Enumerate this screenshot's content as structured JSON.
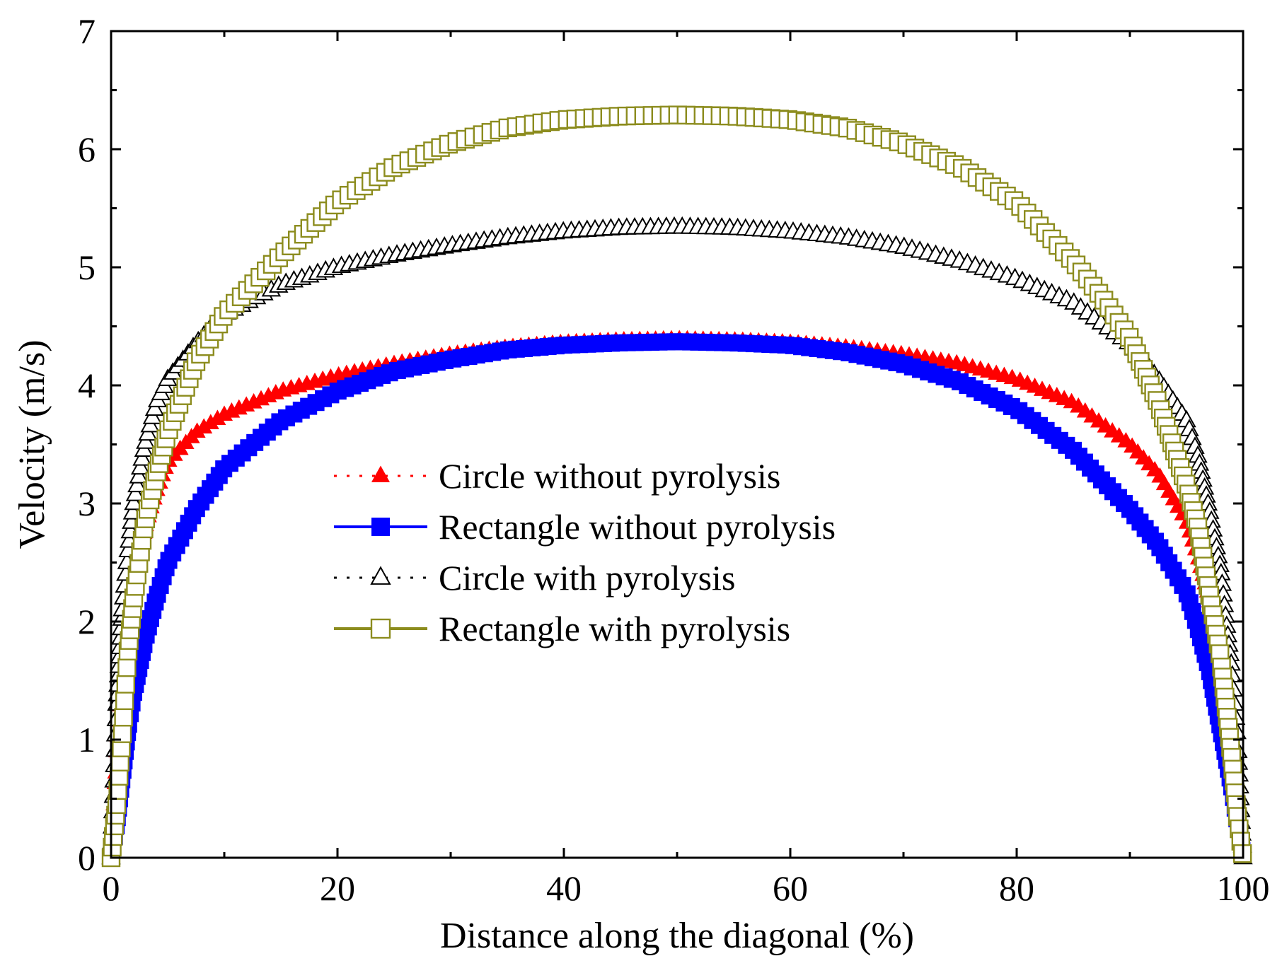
{
  "chart_data": {
    "type": "line",
    "title": "",
    "xlabel": "Distance along the diagonal (%)",
    "ylabel": "Velocity (m/s)",
    "xlim": [
      0,
      100
    ],
    "ylim": [
      0,
      7
    ],
    "xticks": [
      0,
      20,
      40,
      60,
      80,
      100
    ],
    "yticks": [
      0,
      1,
      2,
      3,
      4,
      5,
      6,
      7
    ],
    "legend_position": "center",
    "grid": false,
    "colors": {
      "red": "#ff0000",
      "blue": "#0000ff",
      "black": "#000000",
      "olive": "#8c8c1e"
    },
    "series": [
      {
        "name": "Circle without pyrolysis",
        "line": "dotted",
        "marker": "triangle-filled",
        "color": "#ff0000",
        "x": [
          0,
          0.5,
          1,
          2,
          3,
          4,
          5,
          7.5,
          10,
          15,
          20,
          25,
          30,
          35,
          40,
          45,
          50,
          55,
          60,
          65,
          70,
          75,
          80,
          85,
          90,
          92.5,
          95,
          96,
          97,
          98,
          99,
          99.5,
          100
        ],
        "values": [
          0,
          0.9,
          1.55,
          2.3,
          2.8,
          3.1,
          3.35,
          3.6,
          3.75,
          3.95,
          4.08,
          4.18,
          4.26,
          4.32,
          4.36,
          4.38,
          4.39,
          4.38,
          4.36,
          4.32,
          4.26,
          4.18,
          4.05,
          3.85,
          3.5,
          3.25,
          2.85,
          2.55,
          2.2,
          1.6,
          0.9,
          0.5,
          0
        ]
      },
      {
        "name": "Rectangle without pyrolysis",
        "line": "solid",
        "marker": "square-filled",
        "color": "#0000ff",
        "x": [
          0,
          0.5,
          1,
          1.5,
          2,
          3,
          4,
          5,
          7.5,
          10,
          15,
          20,
          25,
          30,
          35,
          40,
          45,
          50,
          55,
          60,
          65,
          70,
          75,
          80,
          85,
          90,
          92.5,
          95,
          96,
          97,
          98,
          99,
          100
        ],
        "values": [
          0,
          0.3,
          0.7,
          1.1,
          1.4,
          1.85,
          2.2,
          2.5,
          2.95,
          3.3,
          3.7,
          3.95,
          4.12,
          4.22,
          4.3,
          4.34,
          4.36,
          4.37,
          4.36,
          4.34,
          4.28,
          4.18,
          4.03,
          3.8,
          3.45,
          2.95,
          2.65,
          2.25,
          1.95,
          1.6,
          1.1,
          0.6,
          0
        ]
      },
      {
        "name": "Circle with pyrolysis",
        "line": "dotted",
        "marker": "triangle-open",
        "color": "#000000",
        "x": [
          0,
          0.5,
          1,
          1.5,
          2,
          3,
          4,
          5,
          7.5,
          10,
          15,
          20,
          25,
          30,
          35,
          40,
          45,
          50,
          55,
          60,
          65,
          70,
          75,
          80,
          85,
          90,
          92.5,
          95,
          96,
          97,
          98,
          98.5,
          99,
          99.5,
          100
        ],
        "values": [
          0,
          1.3,
          2.1,
          2.6,
          3.0,
          3.5,
          3.85,
          4.05,
          4.35,
          4.6,
          4.85,
          5.0,
          5.1,
          5.18,
          5.25,
          5.3,
          5.33,
          5.34,
          5.33,
          5.3,
          5.25,
          5.17,
          5.05,
          4.9,
          4.7,
          4.35,
          4.05,
          3.7,
          3.4,
          2.95,
          2.45,
          2.0,
          1.6,
          1.0,
          0
        ]
      },
      {
        "name": "Rectangle with pyrolysis",
        "line": "solid",
        "marker": "square-open",
        "color": "#8c8c1e",
        "x": [
          0,
          0.5,
          1,
          1.5,
          2,
          3,
          4,
          5,
          7.5,
          10,
          12.5,
          15,
          20,
          25,
          30,
          35,
          40,
          45,
          50,
          55,
          60,
          65,
          70,
          75,
          80,
          85,
          87.5,
          90,
          92.5,
          95,
          96,
          97,
          98,
          99,
          99.5,
          100
        ],
        "values": [
          0,
          0.45,
          1.05,
          1.75,
          2.2,
          2.85,
          3.25,
          3.6,
          4.2,
          4.6,
          4.85,
          5.1,
          5.55,
          5.85,
          6.05,
          6.18,
          6.25,
          6.28,
          6.29,
          6.28,
          6.25,
          6.18,
          6.05,
          5.85,
          5.55,
          5.05,
          4.75,
          4.4,
          3.85,
          3.15,
          2.8,
          2.25,
          1.7,
          0.85,
          0.35,
          0
        ]
      }
    ]
  }
}
